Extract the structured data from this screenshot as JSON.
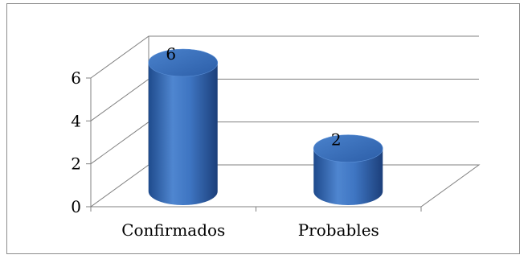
{
  "chart_data": {
    "type": "bar",
    "style": "3d-cylinder",
    "categories": [
      "Confirmados",
      "Probables"
    ],
    "values": [
      6,
      2
    ],
    "data_labels": [
      "6",
      "2"
    ],
    "ylim": [
      0,
      6
    ],
    "yticks": [
      "0",
      "2",
      "4",
      "6"
    ],
    "grid": true,
    "legend": "none",
    "bar_color": "#2f62ad",
    "bar_highlight": "#5a8fd6",
    "bar_top_color": "#3a72c4",
    "grid_color": "#808080",
    "frame_color": "#8c8c8c"
  }
}
